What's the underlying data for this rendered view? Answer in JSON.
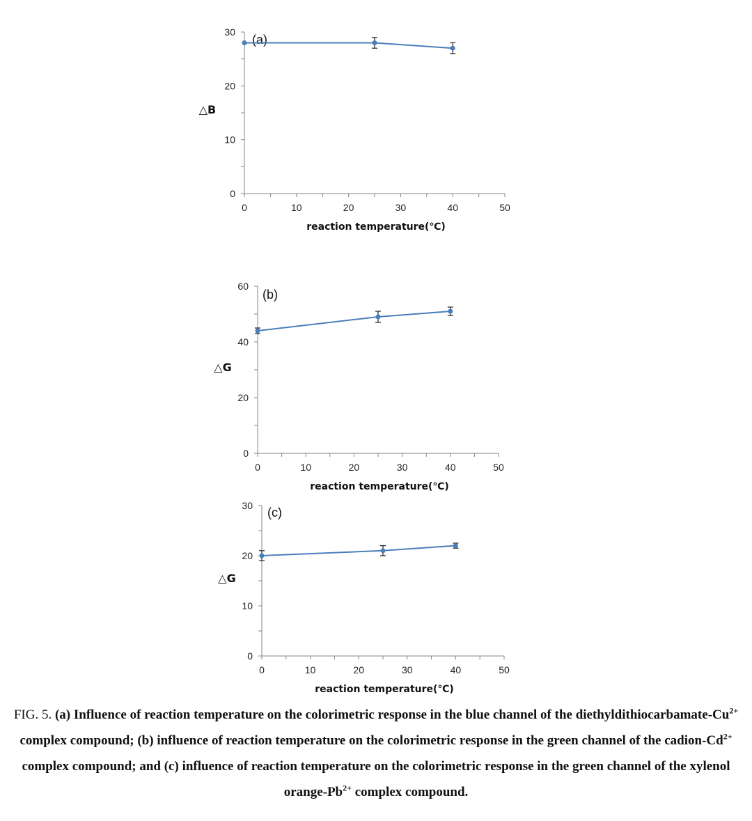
{
  "chart_data": [
    {
      "type": "line",
      "panel": "(a)",
      "ylabel": "△B",
      "xlabel": "reaction temperature(℃)",
      "x": [
        0,
        25,
        40
      ],
      "values": [
        28,
        28,
        27
      ],
      "errors": [
        0,
        1,
        1
      ],
      "xlim": [
        0,
        50
      ],
      "ylim": [
        0,
        30
      ],
      "xticks": [
        0,
        10,
        20,
        30,
        40,
        50
      ],
      "yticks": [
        0,
        10,
        20,
        30
      ],
      "grid": false,
      "color": "#4a7ebb"
    },
    {
      "type": "line",
      "panel": "(b)",
      "ylabel": "△G",
      "xlabel": "reaction temperature(℃)",
      "x": [
        0,
        25,
        40
      ],
      "values": [
        44,
        49,
        51
      ],
      "errors": [
        1,
        2,
        1.5
      ],
      "xlim": [
        0,
        50
      ],
      "ylim": [
        0,
        60
      ],
      "xticks": [
        0,
        10,
        20,
        30,
        40,
        50
      ],
      "yticks": [
        0,
        20,
        40,
        60
      ],
      "grid": false,
      "color": "#4a7ebb"
    },
    {
      "type": "line",
      "panel": "(c)",
      "ylabel": "△G",
      "xlabel": "reaction temperature(℃)",
      "x": [
        0,
        25,
        40
      ],
      "values": [
        20,
        21,
        22
      ],
      "errors": [
        1,
        1,
        0.5
      ],
      "xlim": [
        0,
        50
      ],
      "ylim": [
        0,
        30
      ],
      "xticks": [
        0,
        10,
        20,
        30,
        40,
        50
      ],
      "yticks": [
        0,
        10,
        20,
        30
      ],
      "grid": false,
      "color": "#4a7ebb"
    }
  ],
  "caption": {
    "fig_label": "FIG. 5. ",
    "part1": "(a) Influence of reaction temperature on the colorimetric response in the blue channel of the diethyldithiocarbamate-Cu",
    "sup1": "2+",
    "part2": " complex compound; (b) influence of reaction temperature on the colorimetric response in the green channel of the cadion-Cd",
    "sup2": "2+",
    "part3": " complex compound; and (c) influence of reaction temperature on the colorimetric response in the green channel of the xylenol orange-Pb",
    "sup3": "2+",
    "part4": " complex compound."
  }
}
